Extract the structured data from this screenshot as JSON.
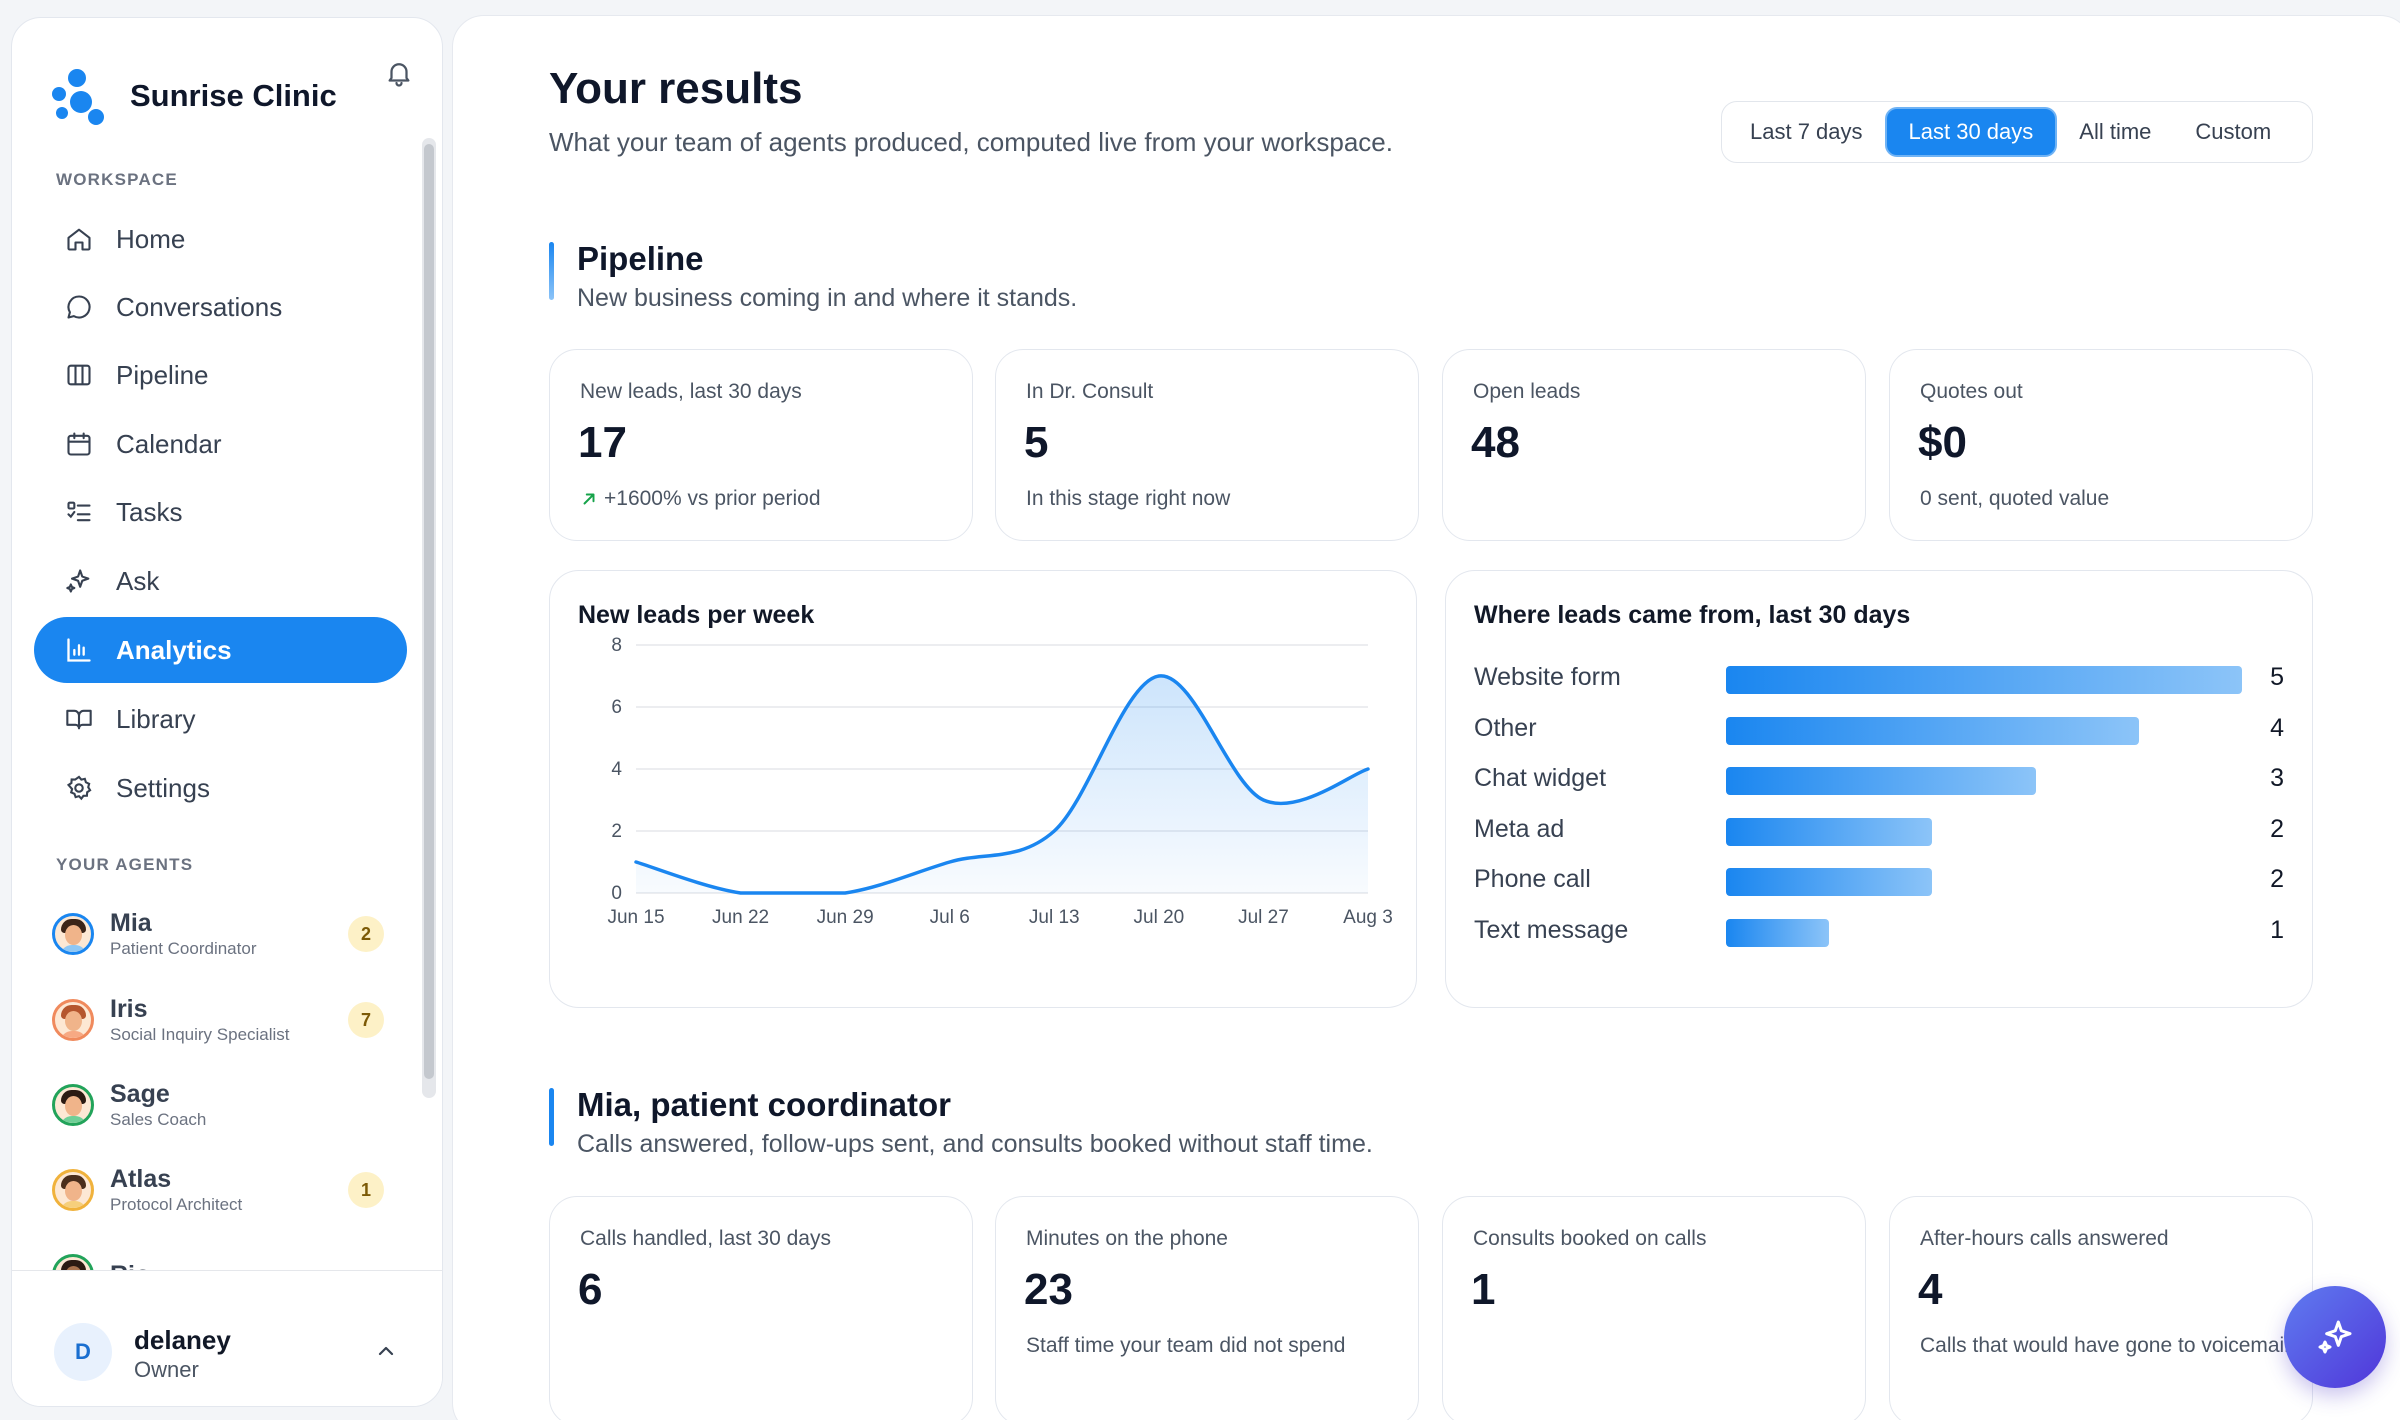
{
  "brand": {
    "name": "Sunrise Clinic"
  },
  "sidebar": {
    "workspace_label": "WORKSPACE",
    "items": [
      {
        "label": "Home",
        "icon": "home-icon"
      },
      {
        "label": "Conversations",
        "icon": "chat-bubble-icon"
      },
      {
        "label": "Pipeline",
        "icon": "columns-icon"
      },
      {
        "label": "Calendar",
        "icon": "calendar-icon"
      },
      {
        "label": "Tasks",
        "icon": "checklist-icon"
      },
      {
        "label": "Ask",
        "icon": "sparkles-icon"
      },
      {
        "label": "Analytics",
        "icon": "bar-chart-icon",
        "active": true
      },
      {
        "label": "Library",
        "icon": "book-icon"
      },
      {
        "label": "Settings",
        "icon": "gear-icon"
      }
    ],
    "agents_label": "YOUR AGENTS",
    "agents": [
      {
        "name": "Mia",
        "role": "Patient Coordinator",
        "badge": "2",
        "ring": "#1a86f0"
      },
      {
        "name": "Iris",
        "role": "Social Inquiry Specialist",
        "badge": "7",
        "ring": "#f08a5d"
      },
      {
        "name": "Sage",
        "role": "Sales Coach",
        "badge": "",
        "ring": "#22a35a"
      },
      {
        "name": "Atlas",
        "role": "Protocol Architect",
        "badge": "1",
        "ring": "#f0b23c"
      },
      {
        "name": "Rio",
        "role": "",
        "badge": "",
        "ring": "#22a35a"
      }
    ],
    "user": {
      "initial": "D",
      "name": "delaney",
      "role": "Owner"
    }
  },
  "header": {
    "title": "Your results",
    "subtitle": "What your team of agents produced, computed live from your workspace.",
    "ranges": [
      {
        "label": "Last 7 days",
        "selected": false
      },
      {
        "label": "Last 30 days",
        "selected": true
      },
      {
        "label": "All time",
        "selected": false
      },
      {
        "label": "Custom",
        "selected": false
      }
    ]
  },
  "pipeline": {
    "title": "Pipeline",
    "subtitle": "New business coming in and where it stands.",
    "cards": [
      {
        "label": "New leads, last 30 days",
        "value": "17",
        "note": "+1600% vs prior period"
      },
      {
        "label": "In Dr. Consult",
        "value": "5",
        "note": "In this stage right now"
      },
      {
        "label": "Open leads",
        "value": "48",
        "note": ""
      },
      {
        "label": "Quotes out",
        "value": "$0",
        "note": "0 sent, quoted value"
      }
    ]
  },
  "coordinator": {
    "title": "Mia, patient coordinator",
    "subtitle": "Calls answered, follow-ups sent, and consults booked without staff time.",
    "cards": [
      {
        "label": "Calls handled, last 30 days",
        "value": "6",
        "note": ""
      },
      {
        "label": "Minutes on the phone",
        "value": "23",
        "note": "Staff time your team did not spend"
      },
      {
        "label": "Consults booked on calls",
        "value": "1",
        "note": ""
      },
      {
        "label": "After-hours calls answered",
        "value": "4",
        "note": "Calls that would have gone to voicemail"
      }
    ]
  },
  "colors": {
    "accent": "#1a86f0",
    "fab": "#5036d9"
  },
  "chart_data": [
    {
      "type": "area",
      "title": "New leads per week",
      "x": [
        "Jun 15",
        "Jun 22",
        "Jun 29",
        "Jul 6",
        "Jul 13",
        "Jul 20",
        "Jul 27",
        "Aug 3"
      ],
      "values": [
        1,
        0,
        0,
        1,
        2,
        7,
        3,
        4
      ],
      "ylim": [
        0,
        8
      ],
      "yticks": [
        "0",
        "2",
        "4",
        "6",
        "8"
      ],
      "grid": true
    },
    {
      "type": "bar",
      "orientation": "horizontal",
      "title": "Where leads came from, last 30 days",
      "categories": [
        "Website form",
        "Other",
        "Chat widget",
        "Meta ad",
        "Phone call",
        "Text message"
      ],
      "values": [
        5,
        4,
        3,
        2,
        2,
        1
      ],
      "xlim": [
        0,
        5
      ]
    }
  ]
}
